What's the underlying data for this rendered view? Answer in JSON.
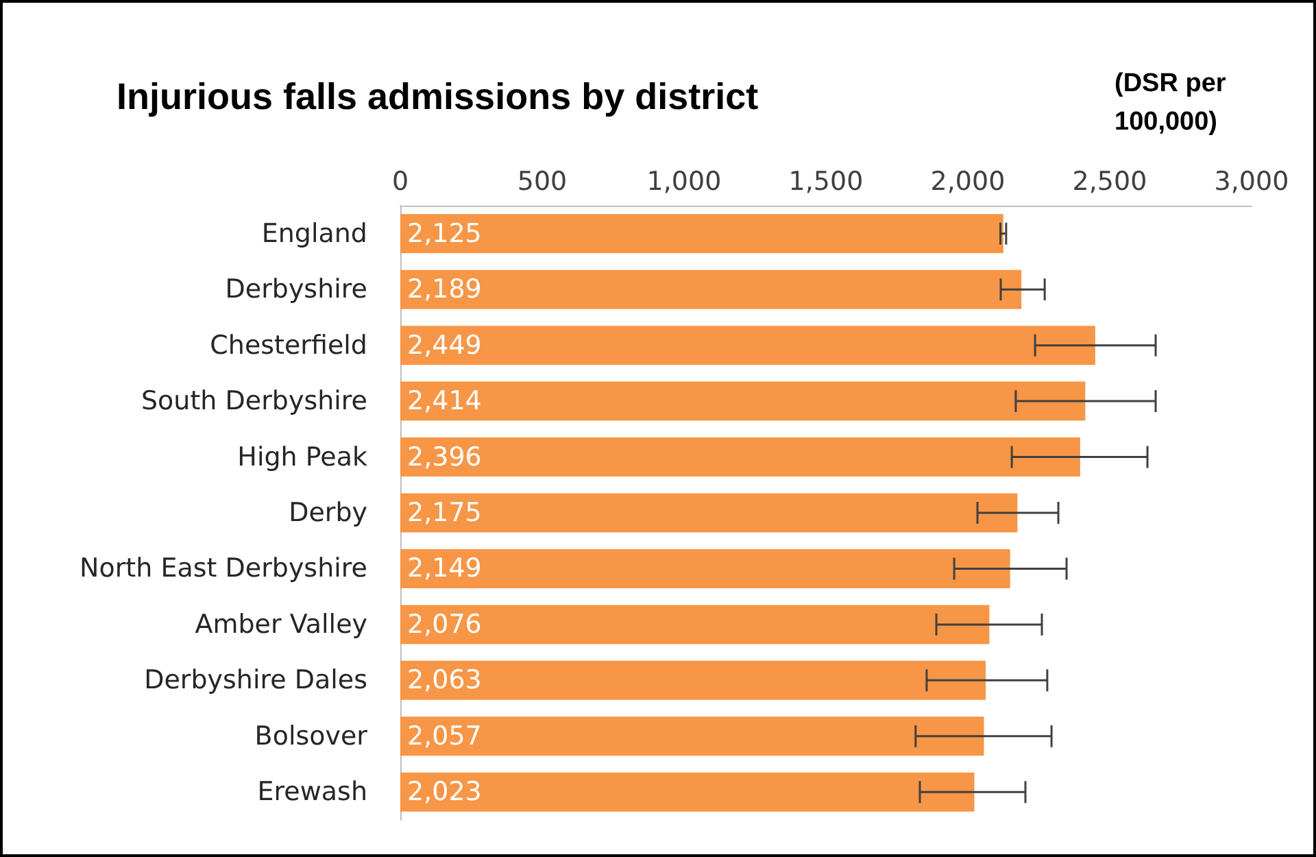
{
  "chart_data": {
    "type": "bar",
    "orientation": "horizontal",
    "title": "Injurious falls admissions by district",
    "xlabel": "(DSR per 100,000)",
    "categories": [
      "England",
      "Derbyshire",
      "Chesterfield",
      "South Derbyshire",
      "High Peak",
      "Derby",
      "North East Derbyshire",
      "Amber Valley",
      "Derbyshire Dales",
      "Bolsover",
      "Erewash"
    ],
    "values": [
      2125,
      2189,
      2449,
      2414,
      2396,
      2175,
      2149,
      2076,
      2063,
      2057,
      2023
    ],
    "value_labels": [
      "2,125",
      "2,189",
      "2,449",
      "2,414",
      "2,396",
      "2,175",
      "2,149",
      "2,076",
      "2,063",
      "2,057",
      "2,023"
    ],
    "errors": [
      [
        2115,
        2135
      ],
      [
        2116,
        2271
      ],
      [
        2237,
        2662
      ],
      [
        2169,
        2662
      ],
      [
        2155,
        2633
      ],
      [
        2034,
        2319
      ],
      [
        1952,
        2348
      ],
      [
        1889,
        2261
      ],
      [
        1855,
        2280
      ],
      [
        1816,
        2295
      ],
      [
        1831,
        2203
      ]
    ],
    "color": "#f79646",
    "xlim": [
      0,
      3000
    ],
    "xticks": [
      0,
      500,
      {
        "value": 1000,
        "label": "1,000"
      },
      {
        "value": 1500,
        "label": "1,500"
      },
      {
        "value": 2000,
        "label": "2,000"
      },
      {
        "value": 2500,
        "label": "2,500"
      },
      {
        "value": 3000,
        "label": "3,000"
      }
    ],
    "grid": false
  }
}
